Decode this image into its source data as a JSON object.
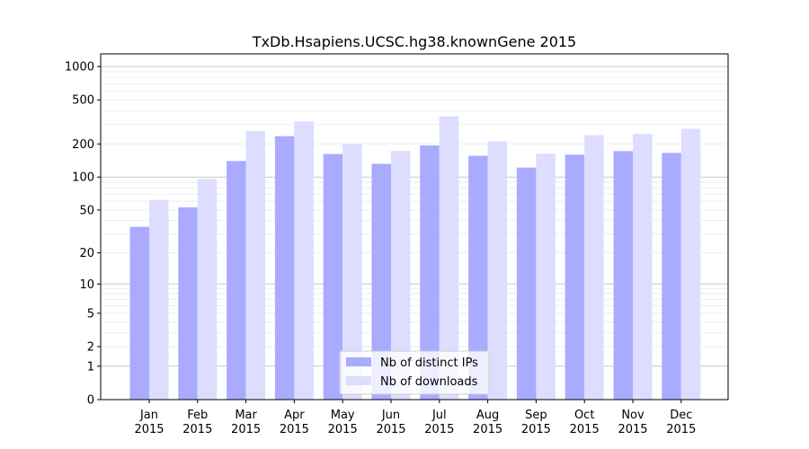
{
  "chart_data": {
    "type": "bar",
    "title": "TxDb.Hsapiens.UCSC.hg38.knownGene 2015",
    "xlabel": "",
    "ylabel": "",
    "y_scale": "log1p",
    "ylim": [
      0,
      1300
    ],
    "y_ticks": [
      0,
      1,
      2,
      5,
      10,
      20,
      50,
      100,
      200,
      500,
      1000
    ],
    "grid": "horizontal",
    "legend_placement": "bottom-center",
    "categories": [
      [
        "Jan",
        "2015"
      ],
      [
        "Feb",
        "2015"
      ],
      [
        "Mar",
        "2015"
      ],
      [
        "Apr",
        "2015"
      ],
      [
        "May",
        "2015"
      ],
      [
        "Jun",
        "2015"
      ],
      [
        "Jul",
        "2015"
      ],
      [
        "Aug",
        "2015"
      ],
      [
        "Sep",
        "2015"
      ],
      [
        "Oct",
        "2015"
      ],
      [
        "Nov",
        "2015"
      ],
      [
        "Dec",
        "2015"
      ]
    ],
    "series": [
      {
        "name": "Nb of distinct IPs",
        "color": "#aaaaff",
        "values": [
          35,
          53,
          140,
          235,
          162,
          132,
          194,
          156,
          122,
          160,
          172,
          166
        ]
      },
      {
        "name": "Nb of downloads",
        "color": "#ddddff",
        "values": [
          62,
          96,
          262,
          320,
          200,
          173,
          355,
          211,
          163,
          240,
          246,
          274
        ]
      }
    ]
  }
}
